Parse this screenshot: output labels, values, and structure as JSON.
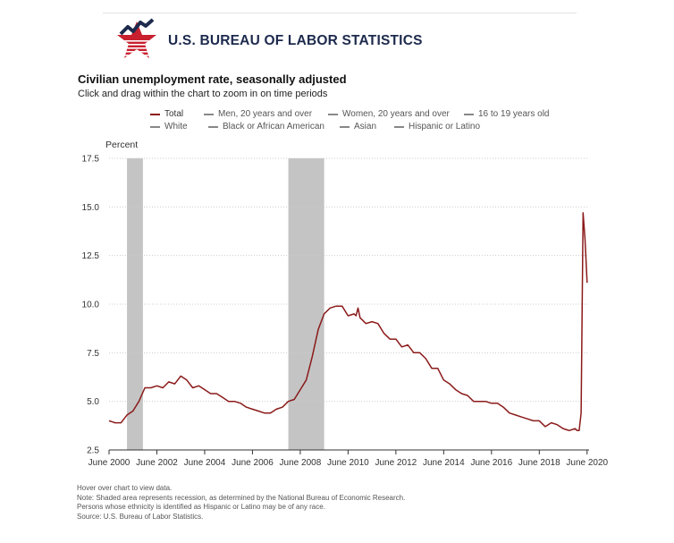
{
  "header": {
    "agency": "U.S. BUREAU OF LABOR STATISTICS",
    "logo_icon": "bls-star-logo"
  },
  "chart": {
    "title": "Civilian unemployment rate, seasonally adjusted",
    "subtitle": "Click and drag within the chart to zoom in on time periods",
    "legend": [
      {
        "label": "Total",
        "active": true
      },
      {
        "label": "Men, 20 years and over",
        "active": false
      },
      {
        "label": "Women, 20 years and over",
        "active": false
      },
      {
        "label": "16 to 19 years old",
        "active": false
      },
      {
        "label": "White",
        "active": false
      },
      {
        "label": "Black or African American",
        "active": false
      },
      {
        "label": "Asian",
        "active": false
      },
      {
        "label": "Hispanic or Latino",
        "active": false
      }
    ]
  },
  "notes": [
    "Hover over chart to view data.",
    "Note: Shaded area represents recession, as determined by the National Bureau of Economic Research.",
    "Persons whose ethnicity is identified as Hispanic or Latino may be of any race.",
    "Source: U.S. Bureau of Labor Statistics."
  ],
  "colors": {
    "series": "#8b1a1a",
    "recession": "#c4c4c4",
    "grid": "#cccccc",
    "agency": "#1d2a4d",
    "logo_red": "#c8202f",
    "logo_blue": "#1d2a4d"
  },
  "chart_data": {
    "type": "line",
    "ylabel": "Percent",
    "xlabel": "",
    "ylim": [
      2.5,
      17.5
    ],
    "yticks": [
      2.5,
      5.0,
      7.5,
      10.0,
      12.5,
      15.0,
      17.5
    ],
    "yticks_labels": [
      "2.5",
      "5.0",
      "7.5",
      "10.0",
      "12.5",
      "15.0",
      "17.5"
    ],
    "xlim": [
      "2000-06",
      "2020-07"
    ],
    "xticks": [
      "2000-06",
      "2002-06",
      "2004-06",
      "2006-06",
      "2008-06",
      "2010-06",
      "2012-06",
      "2014-06",
      "2016-06",
      "2018-06",
      "2020-06"
    ],
    "xticks_labels": [
      "June 2000",
      "June 2002",
      "June 2004",
      "June 2006",
      "June 2008",
      "June 2010",
      "June 2012",
      "June 2014",
      "June 2016",
      "June 2018",
      "June 2020"
    ],
    "grid": "horizontal dotted",
    "recessions": [
      {
        "start": "2001-03",
        "end": "2001-11"
      },
      {
        "start": "2007-12",
        "end": "2009-06"
      }
    ],
    "series": [
      {
        "name": "Total",
        "points": [
          [
            "2000-06",
            4.0
          ],
          [
            "2000-09",
            3.9
          ],
          [
            "2000-12",
            3.9
          ],
          [
            "2001-03",
            4.3
          ],
          [
            "2001-06",
            4.5
          ],
          [
            "2001-09",
            5.0
          ],
          [
            "2001-12",
            5.7
          ],
          [
            "2002-03",
            5.7
          ],
          [
            "2002-06",
            5.8
          ],
          [
            "2002-09",
            5.7
          ],
          [
            "2002-12",
            6.0
          ],
          [
            "2003-03",
            5.9
          ],
          [
            "2003-06",
            6.3
          ],
          [
            "2003-09",
            6.1
          ],
          [
            "2003-12",
            5.7
          ],
          [
            "2004-03",
            5.8
          ],
          [
            "2004-06",
            5.6
          ],
          [
            "2004-09",
            5.4
          ],
          [
            "2004-12",
            5.4
          ],
          [
            "2005-03",
            5.2
          ],
          [
            "2005-06",
            5.0
          ],
          [
            "2005-09",
            5.0
          ],
          [
            "2005-12",
            4.9
          ],
          [
            "2006-03",
            4.7
          ],
          [
            "2006-06",
            4.6
          ],
          [
            "2006-09",
            4.5
          ],
          [
            "2006-12",
            4.4
          ],
          [
            "2007-03",
            4.4
          ],
          [
            "2007-06",
            4.6
          ],
          [
            "2007-09",
            4.7
          ],
          [
            "2007-12",
            5.0
          ],
          [
            "2008-03",
            5.1
          ],
          [
            "2008-06",
            5.6
          ],
          [
            "2008-09",
            6.1
          ],
          [
            "2008-12",
            7.3
          ],
          [
            "2009-03",
            8.7
          ],
          [
            "2009-06",
            9.5
          ],
          [
            "2009-09",
            9.8
          ],
          [
            "2009-12",
            9.9
          ],
          [
            "2010-03",
            9.9
          ],
          [
            "2010-06",
            9.4
          ],
          [
            "2010-09",
            9.5
          ],
          [
            "2010-10",
            9.4
          ],
          [
            "2010-11",
            9.8
          ],
          [
            "2010-12",
            9.3
          ],
          [
            "2011-03",
            9.0
          ],
          [
            "2011-06",
            9.1
          ],
          [
            "2011-09",
            9.0
          ],
          [
            "2011-12",
            8.5
          ],
          [
            "2012-03",
            8.2
          ],
          [
            "2012-06",
            8.2
          ],
          [
            "2012-09",
            7.8
          ],
          [
            "2012-12",
            7.9
          ],
          [
            "2013-03",
            7.5
          ],
          [
            "2013-06",
            7.5
          ],
          [
            "2013-09",
            7.2
          ],
          [
            "2013-12",
            6.7
          ],
          [
            "2014-03",
            6.7
          ],
          [
            "2014-06",
            6.1
          ],
          [
            "2014-09",
            5.9
          ],
          [
            "2014-12",
            5.6
          ],
          [
            "2015-03",
            5.4
          ],
          [
            "2015-06",
            5.3
          ],
          [
            "2015-09",
            5.0
          ],
          [
            "2015-12",
            5.0
          ],
          [
            "2016-03",
            5.0
          ],
          [
            "2016-06",
            4.9
          ],
          [
            "2016-09",
            4.9
          ],
          [
            "2016-12",
            4.7
          ],
          [
            "2017-03",
            4.4
          ],
          [
            "2017-06",
            4.3
          ],
          [
            "2017-09",
            4.2
          ],
          [
            "2017-12",
            4.1
          ],
          [
            "2018-03",
            4.0
          ],
          [
            "2018-06",
            4.0
          ],
          [
            "2018-09",
            3.7
          ],
          [
            "2018-12",
            3.9
          ],
          [
            "2019-03",
            3.8
          ],
          [
            "2019-06",
            3.6
          ],
          [
            "2019-09",
            3.5
          ],
          [
            "2019-12",
            3.6
          ],
          [
            "2020-01",
            3.5
          ],
          [
            "2020-02",
            3.5
          ],
          [
            "2020-03",
            4.4
          ],
          [
            "2020-04",
            14.7
          ],
          [
            "2020-05",
            13.3
          ],
          [
            "2020-06",
            11.1
          ]
        ]
      }
    ]
  }
}
